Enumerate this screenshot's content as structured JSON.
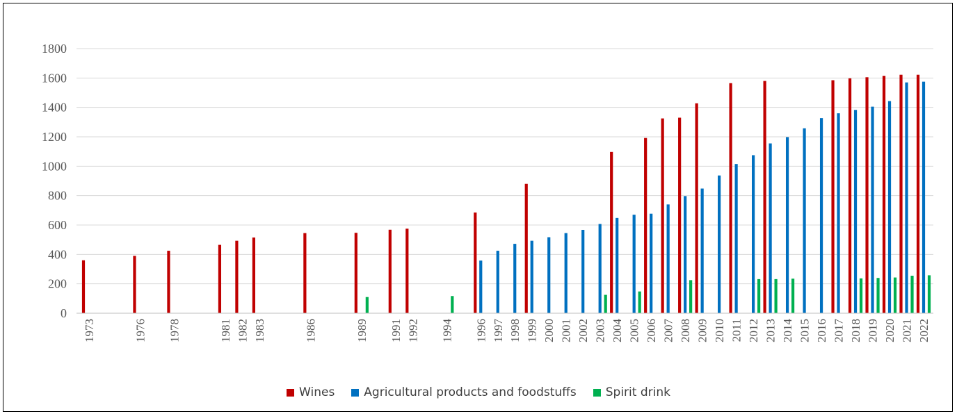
{
  "chart_data": {
    "type": "bar",
    "title": "",
    "xlabel": "",
    "ylabel": "",
    "ylim": [
      0,
      1800
    ],
    "yticks": [
      0,
      200,
      400,
      600,
      800,
      1000,
      1200,
      1400,
      1600,
      1800
    ],
    "grid": true,
    "legend_position": "bottom",
    "categories": [
      "1973",
      "1976",
      "1978",
      "1981",
      "1982",
      "1983",
      "1986",
      "1989",
      "1991",
      "1992",
      "1994",
      "1996",
      "1997",
      "1998",
      "1999",
      "2000",
      "2001",
      "2002",
      "2003",
      "2004",
      "2005",
      "2006",
      "2007",
      "2008",
      "2009",
      "2010",
      "2011",
      "2012",
      "2013",
      "2014",
      "2015",
      "2016",
      "2017",
      "2018",
      "2019",
      "2020",
      "2021",
      "2022"
    ],
    "series": [
      {
        "name": "Wines",
        "color": "#C00000",
        "values": [
          360,
          390,
          425,
          465,
          493,
          515,
          545,
          547,
          568,
          575,
          null,
          685,
          null,
          null,
          880,
          null,
          null,
          null,
          null,
          1097,
          null,
          1192,
          1325,
          1330,
          1428,
          null,
          1565,
          null,
          1580,
          null,
          null,
          null,
          1585,
          1598,
          1605,
          1615,
          1622,
          1622
        ]
      },
      {
        "name": "Agricultural products and foodstuffs",
        "color": "#0070C0",
        "values": [
          null,
          null,
          null,
          null,
          null,
          null,
          null,
          null,
          null,
          null,
          null,
          358,
          425,
          472,
          493,
          517,
          545,
          567,
          607,
          648,
          670,
          677,
          740,
          797,
          848,
          937,
          1015,
          1075,
          1155,
          1198,
          1258,
          1327,
          1360,
          1383,
          1405,
          1443,
          1570,
          1575
        ]
      },
      {
        "name": "Spirit drink",
        "color": "#00B050",
        "values": [
          null,
          null,
          null,
          null,
          null,
          null,
          null,
          110,
          null,
          null,
          117,
          null,
          null,
          null,
          null,
          null,
          null,
          null,
          125,
          null,
          148,
          null,
          null,
          225,
          null,
          null,
          null,
          232,
          232,
          235,
          null,
          null,
          null,
          237,
          240,
          243,
          255,
          258
        ]
      }
    ]
  }
}
